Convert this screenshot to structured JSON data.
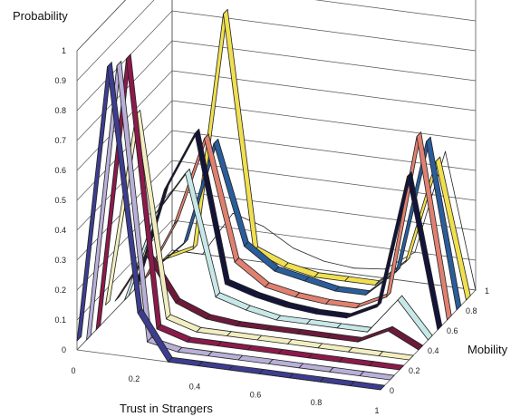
{
  "chart_data": {
    "type": "line",
    "style": "3d-ribbon",
    "zlabel": "Probability",
    "xlabel": "Trust in Strangers",
    "ylabel": "Mobility",
    "x": [
      0,
      0.1,
      0.2,
      0.3,
      0.4,
      0.5,
      0.6,
      0.7,
      0.8,
      0.9,
      1.0
    ],
    "x_tick_labels": [
      "0",
      "0.2",
      "0.4",
      "0.6",
      "0.8",
      "1"
    ],
    "y_tick_labels": [
      "0",
      "0.2",
      "0.4",
      "0.6",
      "0.8",
      "1"
    ],
    "z_tick_labels": [
      "0",
      "0.1",
      "0.2",
      "0.3",
      "0.4",
      "0.5",
      "0.6",
      "0.7",
      "0.8",
      "0.9",
      "1"
    ],
    "zlim": [
      0,
      1
    ],
    "grid": true,
    "series": [
      {
        "mobility": 0.0,
        "color": "#3d3d8f",
        "values": [
          0.03,
          0.96,
          0.15,
          0.0,
          0.0,
          0.0,
          0.0,
          0.0,
          0.0,
          0.0,
          0.0
        ]
      },
      {
        "mobility": 0.1,
        "color": "#b9b0d8",
        "values": [
          0.0,
          0.93,
          0.02,
          0.0,
          0.0,
          0.0,
          0.0,
          0.0,
          0.0,
          0.0,
          0.0
        ]
      },
      {
        "mobility": 0.2,
        "color": "#8b1a4a",
        "values": [
          0.0,
          0.92,
          0.03,
          0.0,
          0.0,
          0.0,
          0.0,
          0.0,
          0.0,
          0.0,
          0.0
        ]
      },
      {
        "mobility": 0.3,
        "color": "#f2eec0",
        "values": [
          0.05,
          0.7,
          0.03,
          0.0,
          0.0,
          0.0,
          0.0,
          0.0,
          0.0,
          0.0,
          0.0
        ]
      },
      {
        "mobility": 0.4,
        "color": "#6b1a3a",
        "values": [
          0.03,
          0.2,
          0.05,
          0.01,
          0.0,
          0.0,
          0.0,
          0.0,
          0.0,
          0.05,
          0.0
        ]
      },
      {
        "mobility": 0.5,
        "color": "#c8e8e8",
        "values": [
          0.0,
          0.3,
          0.45,
          0.05,
          0.02,
          0.0,
          0.0,
          0.0,
          0.0,
          0.12,
          0.0
        ]
      },
      {
        "mobility": 0.6,
        "color": "#141438",
        "values": [
          0.0,
          0.35,
          0.55,
          0.06,
          0.03,
          0.01,
          0.0,
          0.0,
          0.05,
          0.5,
          0.0
        ]
      },
      {
        "mobility": 0.7,
        "color": "#e08070",
        "values": [
          0.0,
          0.2,
          0.5,
          0.1,
          0.03,
          0.01,
          0.0,
          0.0,
          0.05,
          0.6,
          0.0
        ]
      },
      {
        "mobility": 0.8,
        "color": "#2a5d9a",
        "values": [
          0.0,
          0.1,
          0.45,
          0.12,
          0.05,
          0.03,
          0.01,
          0.01,
          0.1,
          0.55,
          0.0
        ]
      },
      {
        "mobility": 0.9,
        "color": "#f0e050",
        "values": [
          0.0,
          0.05,
          0.85,
          0.07,
          0.03,
          0.01,
          0.01,
          0.01,
          0.1,
          0.45,
          0.0
        ]
      },
      {
        "mobility": 1.0,
        "color": "#101010",
        "values": [
          0.0,
          0.0,
          0.15,
          0.12,
          0.06,
          0.03,
          0.02,
          0.03,
          0.1,
          0.45,
          0.0
        ]
      }
    ]
  }
}
